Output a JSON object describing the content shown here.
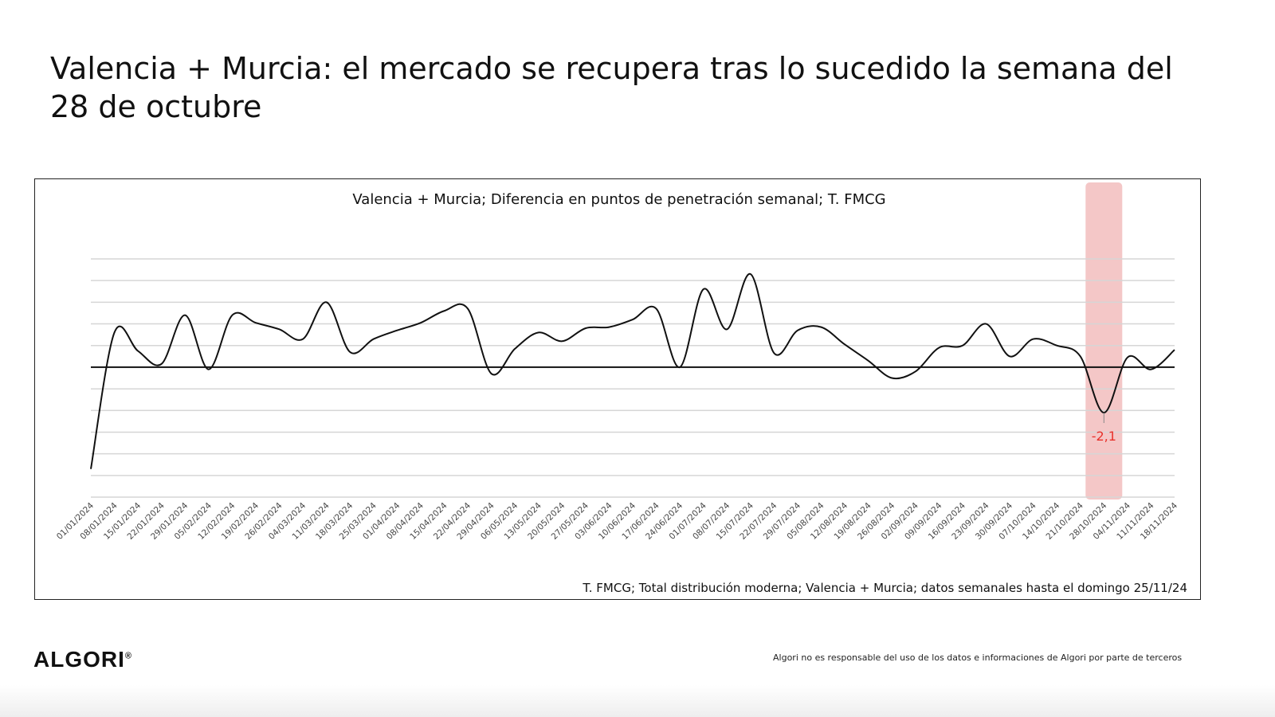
{
  "slide": {
    "title": "Valencia + Murcia: el mercado se recupera tras lo sucedido la semana del 28 de octubre",
    "logo": "ALGORI",
    "logo_mark": "®",
    "disclaimer": "Algori no es responsable del uso de los datos e informaciones de Algori por parte de terceros"
  },
  "chart_data": {
    "type": "line",
    "title": "Valencia + Murcia; Diferencia en puntos de penetración semanal; T. FMCG",
    "source_note": "T. FMCG; Total distribución moderna; Valencia + Murcia; datos semanales hasta el domingo 25/11/24",
    "xlabel": "",
    "ylabel": "",
    "ylim": [
      -6,
      5
    ],
    "grid": true,
    "x": [
      "01/01/2024",
      "08/01/2024",
      "15/01/2024",
      "22/01/2024",
      "29/01/2024",
      "05/02/2024",
      "12/02/2024",
      "19/02/2024",
      "26/02/2024",
      "04/03/2024",
      "11/03/2024",
      "18/03/2024",
      "25/03/2024",
      "01/04/2024",
      "08/04/2024",
      "15/04/2024",
      "22/04/2024",
      "29/04/2024",
      "06/05/2024",
      "13/05/2024",
      "20/05/2024",
      "27/05/2024",
      "03/06/2024",
      "10/06/2024",
      "17/06/2024",
      "24/06/2024",
      "01/07/2024",
      "08/07/2024",
      "15/07/2024",
      "22/07/2024",
      "29/07/2024",
      "05/08/2024",
      "12/08/2024",
      "19/08/2024",
      "26/08/2024",
      "02/09/2024",
      "09/09/2024",
      "16/09/2024",
      "23/09/2024",
      "30/09/2024",
      "07/10/2024",
      "14/10/2024",
      "21/10/2024",
      "28/10/2024",
      "04/11/2024",
      "11/11/2024",
      "18/11/2024"
    ],
    "values": [
      -4.7,
      1.6,
      0.75,
      0.15,
      2.4,
      -0.1,
      2.4,
      2.05,
      1.75,
      1.3,
      3.0,
      0.7,
      1.3,
      1.7,
      2.05,
      2.6,
      2.7,
      -0.3,
      0.85,
      1.6,
      1.2,
      1.8,
      1.85,
      2.2,
      2.7,
      0.0,
      3.6,
      1.75,
      4.3,
      0.65,
      1.7,
      1.85,
      1.05,
      0.3,
      -0.5,
      -0.2,
      0.9,
      1.0,
      2.0,
      0.5,
      1.3,
      1.0,
      0.5,
      -2.1,
      0.45,
      -0.1,
      0.8
    ],
    "highlight": {
      "index": 43,
      "label": "-2,1",
      "color": "#f4c7c7",
      "label_color": "#e8302a"
    }
  }
}
